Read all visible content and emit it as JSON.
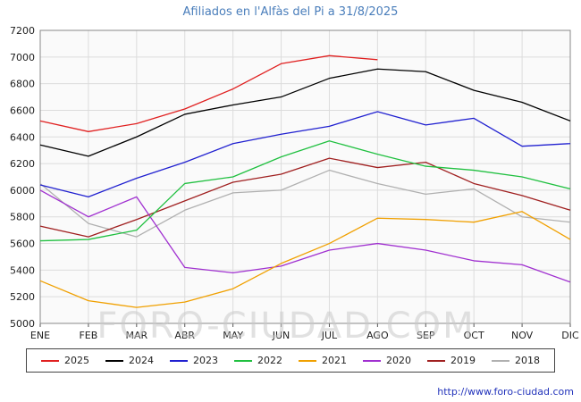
{
  "title": "Afiliados en l'Alfàs del Pi a 31/8/2025",
  "watermark": "FORO-CIUDAD.COM",
  "footer": {
    "url": "http://www.foro-ciudad.com"
  },
  "colors": {
    "title": "#4a7ebb",
    "plot_bg": "#fafafa",
    "grid": "#dcdcdc",
    "plot_border": "#888888",
    "axis_text": "#222222",
    "watermark": "#c8c8c8"
  },
  "chart_data": {
    "type": "line",
    "title": "Afiliados en l'Alfàs del Pi a 31/8/2025",
    "xlabel": "",
    "ylabel": "",
    "ylim": [
      5000,
      7200
    ],
    "ytick_step": 200,
    "grid": true,
    "legend_position": "bottom",
    "categories": [
      "ENE",
      "FEB",
      "MAR",
      "ABR",
      "MAY",
      "JUN",
      "JUL",
      "AGO",
      "SEP",
      "OCT",
      "NOV",
      "DIC"
    ],
    "series": [
      {
        "name": "2025",
        "color": "#e02020",
        "values": [
          6520,
          6440,
          6500,
          6610,
          6760,
          6950,
          7010,
          6980
        ]
      },
      {
        "name": "2024",
        "color": "#000000",
        "values": [
          6340,
          6255,
          6400,
          6570,
          6640,
          6700,
          6840,
          6910,
          6890,
          6750,
          6660,
          6520
        ]
      },
      {
        "name": "2023",
        "color": "#2020d0",
        "values": [
          6040,
          5950,
          6090,
          6210,
          6350,
          6420,
          6480,
          6590,
          6490,
          6540,
          6330,
          6350
        ]
      },
      {
        "name": "2022",
        "color": "#20c040",
        "values": [
          5620,
          5630,
          5700,
          6050,
          6100,
          6250,
          6370,
          6270,
          6180,
          6150,
          6100,
          6010
        ]
      },
      {
        "name": "2021",
        "color": "#f0a000",
        "values": [
          5320,
          5170,
          5120,
          5160,
          5260,
          5450,
          5600,
          5790,
          5780,
          5760,
          5840,
          5630
        ]
      },
      {
        "name": "2020",
        "color": "#a030d0",
        "values": [
          6000,
          5800,
          5950,
          5420,
          5380,
          5430,
          5550,
          5600,
          5550,
          5470,
          5440,
          5310
        ]
      },
      {
        "name": "2019",
        "color": "#a02020",
        "values": [
          5730,
          5650,
          5780,
          5920,
          6060,
          6120,
          6240,
          6170,
          6210,
          6050,
          5960,
          5850
        ]
      },
      {
        "name": "2018",
        "color": "#b0b0b0",
        "values": [
          6050,
          5750,
          5650,
          5850,
          5980,
          6000,
          6150,
          6050,
          5970,
          6010,
          5800,
          5760
        ]
      }
    ]
  }
}
